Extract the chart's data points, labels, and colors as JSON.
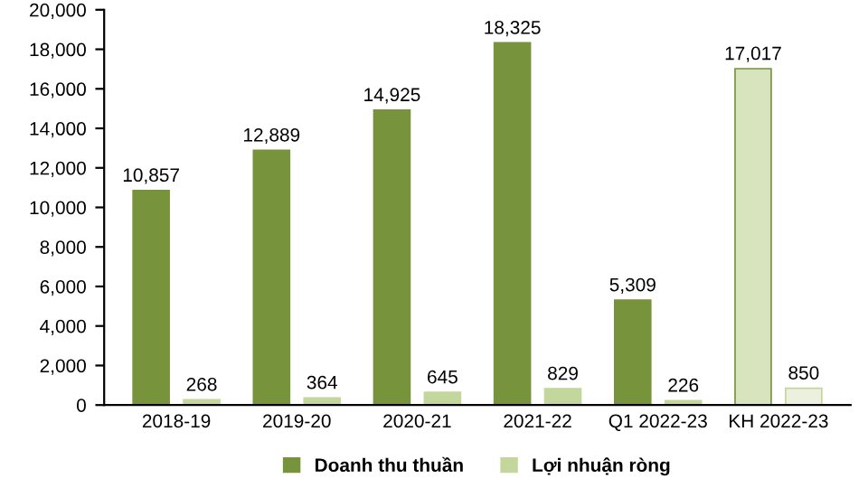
{
  "chart_data": {
    "type": "bar",
    "categories": [
      "2018-19",
      "2019-20",
      "2020-21",
      "2021-22",
      "Q1 2022-23",
      "KH 2022-23"
    ],
    "series": [
      {
        "name": "Doanh thu thuần",
        "color": "#77933c",
        "colors": [
          "#77933c",
          "#77933c",
          "#77933c",
          "#77933c",
          "#77933c",
          "#d7e4bd"
        ],
        "values": [
          10857,
          12889,
          14925,
          18325,
          5309,
          17017
        ],
        "value_labels": [
          "10,857",
          "12,889",
          "14,925",
          "18,325",
          "5,309",
          "17,017"
        ]
      },
      {
        "name": "Lợi nhuận ròng",
        "color": "#c3d69b",
        "colors": [
          "#c3d69b",
          "#c3d69b",
          "#c3d69b",
          "#c3d69b",
          "#c3d69b",
          "#ebf1de"
        ],
        "values": [
          268,
          364,
          645,
          829,
          226,
          850
        ],
        "value_labels": [
          "268",
          "364",
          "645",
          "829",
          "226",
          "850"
        ]
      }
    ],
    "ylim": [
      0,
      20000
    ],
    "yticks": [
      0,
      {
        "value": 2000,
        "label": "2,000"
      },
      {
        "value": 4000,
        "label": "4,000"
      },
      {
        "value": 6000,
        "label": "6,000"
      },
      {
        "value": 8000,
        "label": "8,000"
      },
      {
        "value": 10000,
        "label": "10,000"
      },
      {
        "value": 12000,
        "label": "12,000"
      },
      {
        "value": 14000,
        "label": "14,000"
      },
      {
        "value": 16000,
        "label": "16,000"
      },
      {
        "value": 18000,
        "label": "18,000"
      },
      {
        "value": 20000,
        "label": "20,000"
      }
    ],
    "grid": false,
    "legend": "bottom"
  }
}
